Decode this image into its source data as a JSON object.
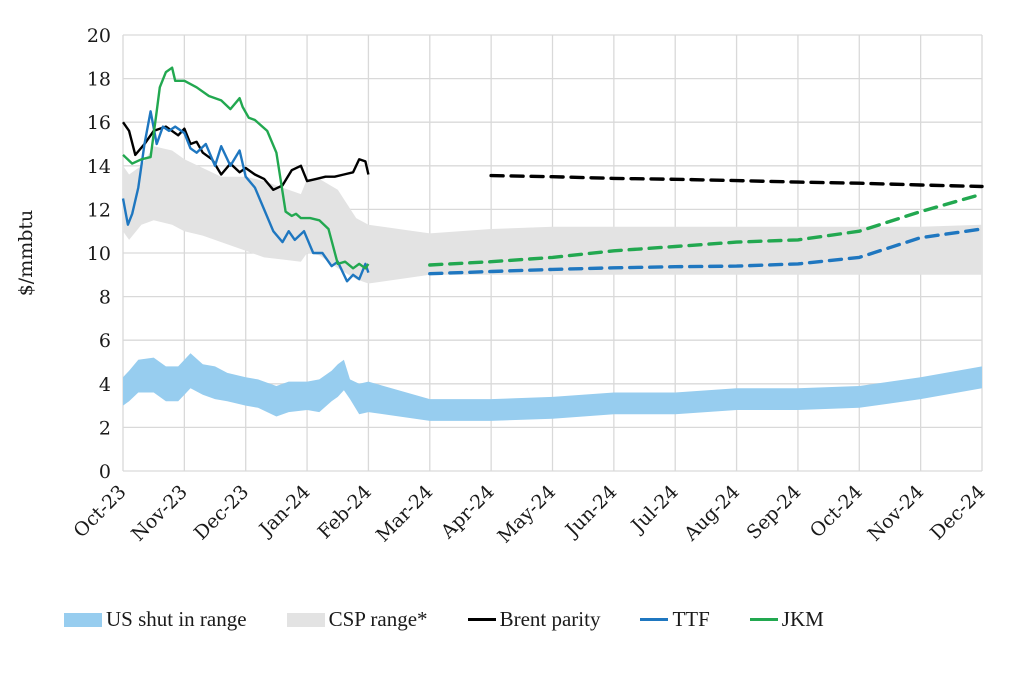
{
  "chart_data": {
    "type": "line",
    "title": "",
    "xlabel": "",
    "ylabel": "$/mmbtu",
    "ylim": [
      0,
      20
    ],
    "yticks": [
      0,
      2,
      4,
      6,
      8,
      10,
      12,
      14,
      16,
      18,
      20
    ],
    "grid": true,
    "legend_position": "bottom",
    "x_categories": [
      "Oct-23",
      "Nov-23",
      "Dec-23",
      "Jan-24",
      "Feb-24",
      "Mar-24",
      "Apr-24",
      "May-24",
      "Jun-24",
      "Jul-24",
      "Aug-24",
      "Sep-24",
      "Oct-24",
      "Nov-24",
      "Dec-24"
    ],
    "series": [
      {
        "name": "US shut in range",
        "kind": "band",
        "color": "#97cdef",
        "x": [
          0,
          0.1,
          0.25,
          0.5,
          0.7,
          0.9,
          1.0,
          1.1,
          1.3,
          1.5,
          1.7,
          2.0,
          2.2,
          2.5,
          2.7,
          3.0,
          3.2,
          3.4,
          3.5,
          3.6,
          3.7,
          3.85,
          4.0,
          5.0,
          6.0,
          7.0,
          8.0,
          9.0,
          10.0,
          11.0,
          12.0,
          13.0,
          14.0
        ],
        "low": [
          3.0,
          3.2,
          3.6,
          3.6,
          3.2,
          3.2,
          3.5,
          3.8,
          3.5,
          3.3,
          3.2,
          3.0,
          2.9,
          2.5,
          2.7,
          2.8,
          2.7,
          3.2,
          3.4,
          3.7,
          3.3,
          2.6,
          2.7,
          2.3,
          2.3,
          2.4,
          2.6,
          2.6,
          2.8,
          2.8,
          2.9,
          3.3,
          3.8
        ],
        "high": [
          4.3,
          4.6,
          5.1,
          5.2,
          4.8,
          4.8,
          5.1,
          5.4,
          4.9,
          4.8,
          4.5,
          4.3,
          4.2,
          3.9,
          4.1,
          4.1,
          4.2,
          4.6,
          4.9,
          5.1,
          4.2,
          4.0,
          4.1,
          3.3,
          3.3,
          3.4,
          3.6,
          3.6,
          3.8,
          3.8,
          3.9,
          4.3,
          4.8
        ]
      },
      {
        "name": "CSP range*",
        "kind": "band",
        "color": "#e3e3e3",
        "x": [
          0,
          0.1,
          0.3,
          0.5,
          0.8,
          1.0,
          1.3,
          1.6,
          2.0,
          2.3,
          2.6,
          2.9,
          3.0,
          3.2,
          3.5,
          3.8,
          4.0,
          5.0,
          6.0,
          7.0,
          8.0,
          9.0,
          10.0,
          11.0,
          12.0,
          13.0,
          14.0
        ],
        "low": [
          11.0,
          10.6,
          11.3,
          11.5,
          11.3,
          11.0,
          10.8,
          10.5,
          10.1,
          9.8,
          9.7,
          9.6,
          10.0,
          9.9,
          9.3,
          8.8,
          8.6,
          9.0,
          9.0,
          9.0,
          9.0,
          9.0,
          9.0,
          9.0,
          9.0,
          9.0,
          9.0
        ],
        "high": [
          14.0,
          13.6,
          14.0,
          14.9,
          14.7,
          14.3,
          13.9,
          13.5,
          13.5,
          13.3,
          13.0,
          12.7,
          13.4,
          13.4,
          12.9,
          11.6,
          11.3,
          10.9,
          11.1,
          11.2,
          11.2,
          11.2,
          11.2,
          11.2,
          11.2,
          11.2,
          11.3
        ]
      },
      {
        "name": "Brent parity",
        "kind": "line",
        "color": "#000000",
        "x": [
          0,
          0.1,
          0.2,
          0.35,
          0.5,
          0.7,
          0.9,
          1.0,
          1.1,
          1.2,
          1.3,
          1.45,
          1.6,
          1.75,
          1.9,
          2.0,
          2.15,
          2.3,
          2.45,
          2.6,
          2.75,
          2.9,
          3.0,
          3.15,
          3.3,
          3.45,
          3.6,
          3.75,
          3.85,
          3.95,
          4.0
        ],
        "values": [
          16.0,
          15.6,
          14.5,
          15.0,
          15.6,
          15.8,
          15.4,
          15.7,
          15.0,
          15.1,
          14.6,
          14.3,
          13.6,
          14.1,
          13.7,
          13.9,
          13.6,
          13.4,
          12.9,
          13.1,
          13.8,
          14.0,
          13.3,
          13.4,
          13.5,
          13.5,
          13.6,
          13.7,
          14.3,
          14.2,
          13.6
        ]
      },
      {
        "name": "Brent parity forecast",
        "kind": "dashed",
        "color": "#000000",
        "x": [
          6,
          7,
          8,
          9,
          10,
          11,
          12,
          13,
          14
        ],
        "values": [
          13.55,
          13.5,
          13.42,
          13.38,
          13.32,
          13.25,
          13.2,
          13.12,
          13.05
        ]
      },
      {
        "name": "TTF",
        "kind": "line",
        "color": "#1f77c0",
        "x": [
          0,
          0.08,
          0.15,
          0.25,
          0.35,
          0.45,
          0.55,
          0.65,
          0.75,
          0.85,
          1.0,
          1.1,
          1.2,
          1.35,
          1.5,
          1.6,
          1.75,
          1.9,
          2.0,
          2.15,
          2.3,
          2.45,
          2.6,
          2.7,
          2.8,
          2.95,
          3.1,
          3.25,
          3.4,
          3.5,
          3.65,
          3.75,
          3.85,
          3.95,
          4.0
        ],
        "values": [
          12.5,
          11.3,
          11.8,
          13.0,
          15.0,
          16.5,
          15.0,
          15.8,
          15.6,
          15.8,
          15.5,
          14.8,
          14.6,
          15.0,
          14.0,
          14.9,
          14.0,
          14.7,
          13.5,
          13.0,
          12.0,
          11.0,
          10.5,
          11.0,
          10.6,
          11.0,
          10.0,
          10.0,
          9.4,
          9.6,
          8.7,
          9.0,
          8.8,
          9.5,
          9.1
        ]
      },
      {
        "name": "TTF forecast",
        "kind": "dashed",
        "color": "#1f77c0",
        "x": [
          5,
          6,
          7,
          8,
          9,
          10,
          11,
          12,
          13,
          14
        ],
        "values": [
          9.05,
          9.15,
          9.25,
          9.32,
          9.37,
          9.4,
          9.5,
          9.8,
          10.7,
          11.1
        ]
      },
      {
        "name": "JKM",
        "kind": "line",
        "color": "#22a850",
        "x": [
          0,
          0.15,
          0.3,
          0.45,
          0.55,
          0.6,
          0.7,
          0.8,
          0.85,
          0.95,
          1.0,
          1.2,
          1.4,
          1.6,
          1.75,
          1.9,
          1.95,
          2.05,
          2.15,
          2.35,
          2.5,
          2.65,
          2.75,
          2.82,
          2.9,
          3.05,
          3.2,
          3.35,
          3.5,
          3.62,
          3.75,
          3.85,
          3.95,
          4.0
        ],
        "values": [
          14.5,
          14.1,
          14.3,
          14.4,
          16.5,
          17.6,
          18.3,
          18.5,
          17.9,
          17.9,
          17.9,
          17.6,
          17.2,
          17.0,
          16.6,
          17.1,
          16.7,
          16.2,
          16.1,
          15.6,
          14.6,
          11.9,
          11.7,
          11.8,
          11.6,
          11.6,
          11.5,
          11.1,
          9.5,
          9.6,
          9.3,
          9.5,
          9.3,
          9.5
        ]
      },
      {
        "name": "JKM forecast",
        "kind": "dashed",
        "color": "#22a850",
        "x": [
          5,
          6,
          7,
          8,
          9,
          10,
          11,
          12,
          13,
          14
        ],
        "values": [
          9.45,
          9.6,
          9.8,
          10.1,
          10.3,
          10.5,
          10.6,
          11.0,
          11.9,
          12.7
        ]
      }
    ],
    "legend": [
      {
        "label": "US shut in range",
        "type": "box",
        "color": "#97cdef"
      },
      {
        "label": "CSP range*",
        "type": "box",
        "color": "#e3e3e3"
      },
      {
        "label": "Brent parity",
        "type": "line",
        "color": "#000000"
      },
      {
        "label": "TTF",
        "type": "line",
        "color": "#1f77c0"
      },
      {
        "label": "JKM",
        "type": "line",
        "color": "#22a850"
      }
    ]
  }
}
